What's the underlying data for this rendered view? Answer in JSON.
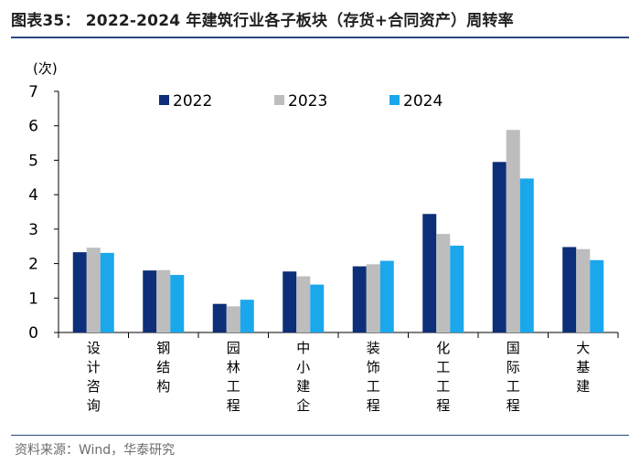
{
  "header": {
    "title": "图表35： 2022-2024 年建筑行业各子板块（存货+合同资产）周转率"
  },
  "footer": {
    "source": "资料来源：Wind，华泰研究"
  },
  "chart_data": {
    "type": "bar",
    "title": "2022-2024 年建筑行业各子板块（存货+合同资产）周转率",
    "ylabel": "(次)",
    "xlabel": "",
    "ylim": [
      0,
      7
    ],
    "yticks": [
      "0",
      "1",
      "2",
      "3",
      "4",
      "5",
      "6",
      "7"
    ],
    "grid": false,
    "legend_position": "top",
    "categories": [
      "设计咨询",
      "钢结构",
      "园林工程",
      "中小建企",
      "装饰工程",
      "化工工程",
      "国际工程",
      "大基建"
    ],
    "series": [
      {
        "name": "2022",
        "color": "#0d2e78",
        "values": [
          2.33,
          1.8,
          0.83,
          1.77,
          1.92,
          3.44,
          4.95,
          2.48
        ]
      },
      {
        "name": "2023",
        "color": "#bdbdbd",
        "values": [
          2.46,
          1.81,
          0.76,
          1.63,
          1.98,
          2.86,
          5.88,
          2.42
        ]
      },
      {
        "name": "2024",
        "color": "#1aa7ec",
        "values": [
          2.31,
          1.67,
          0.95,
          1.39,
          2.08,
          2.52,
          4.47,
          2.1
        ]
      }
    ]
  }
}
